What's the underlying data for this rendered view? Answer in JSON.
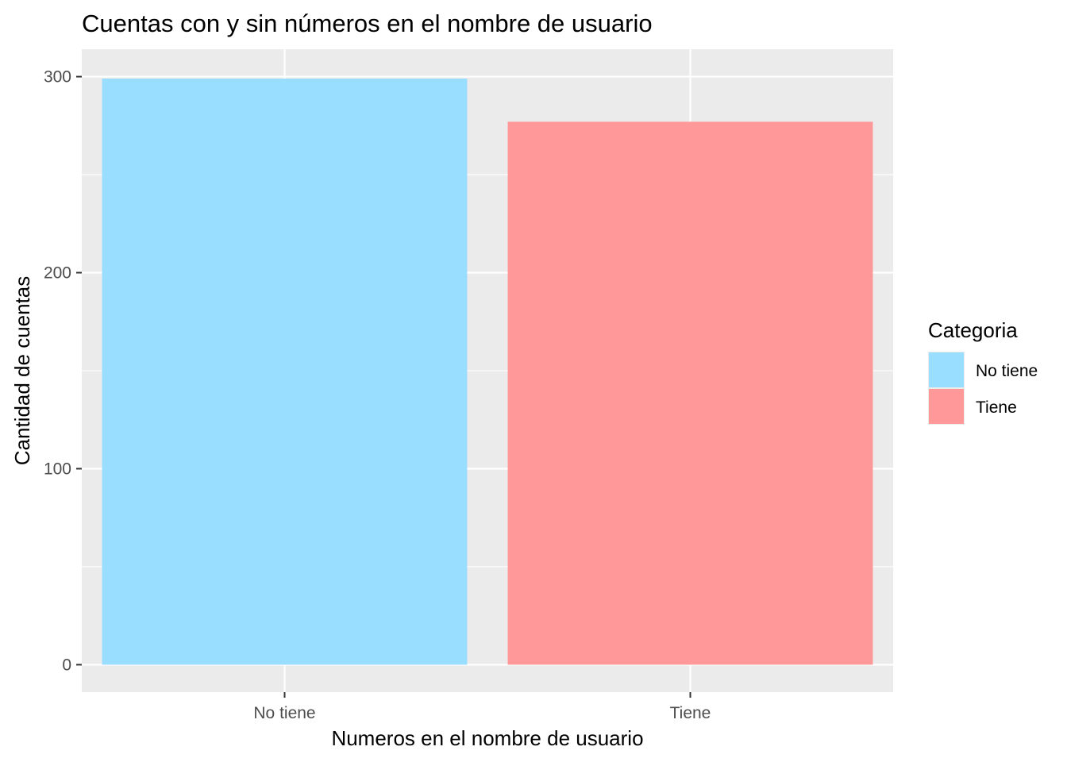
{
  "chart_data": {
    "type": "bar",
    "title": "Cuentas con y sin números en el nombre de usuario",
    "xlabel": "Numeros en el nombre de usuario",
    "ylabel": "Cantidad de cuentas",
    "categories": [
      "No tiene",
      "Tiene"
    ],
    "values": [
      299,
      277
    ],
    "colors": [
      "#99ddff",
      "#ff9999"
    ],
    "ylim": [
      -14,
      314
    ],
    "yticks": [
      0,
      100,
      200,
      300
    ],
    "yticks_minor": [
      50,
      150,
      250
    ],
    "grid": true,
    "panel_background": "#ebebeb",
    "legend": {
      "title": "Categoria",
      "position": "right",
      "entries": [
        "No tiene",
        "Tiene"
      ]
    }
  }
}
